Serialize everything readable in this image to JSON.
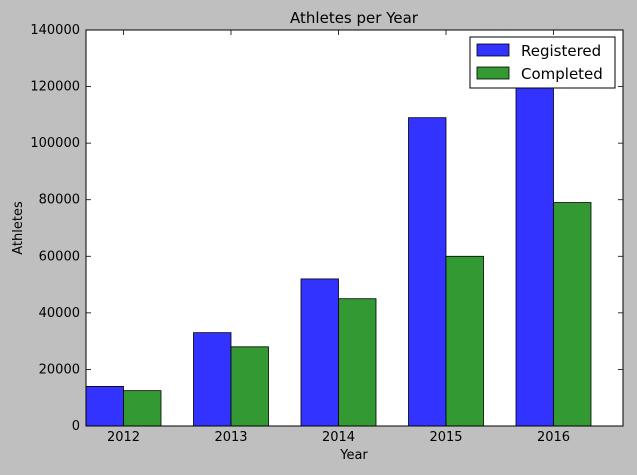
{
  "chart_data": {
    "type": "bar",
    "title": "Athletes per Year",
    "xlabel": "Year",
    "ylabel": "Athletes",
    "categories": [
      "2012",
      "2013",
      "2014",
      "2015",
      "2016"
    ],
    "series": [
      {
        "name": "Registered",
        "values": [
          14000,
          33000,
          52000,
          109000,
          120000
        ],
        "color": "#3333ff"
      },
      {
        "name": "Completed",
        "values": [
          12500,
          28000,
          45000,
          60000,
          79000
        ],
        "color": "#339933"
      }
    ],
    "ylim": [
      0,
      140000
    ],
    "yticks": [
      "0",
      "20000",
      "40000",
      "60000",
      "80000",
      "100000",
      "120000",
      "140000"
    ],
    "grid": false,
    "legend_position": "top-right"
  }
}
